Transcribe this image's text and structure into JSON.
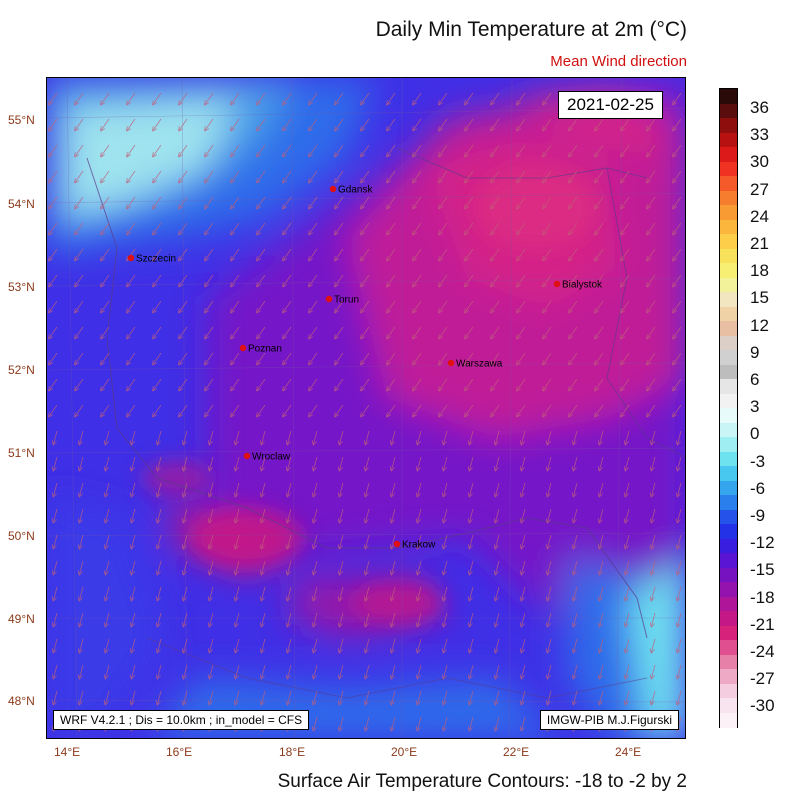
{
  "title": "Daily Min Temperature at 2m (°C)",
  "subtitle": "Mean Wind direction",
  "footer": "Surface Air Temperature Contours: -18 to -2 by 2",
  "date": "2021-02-25",
  "model_info": "WRF V4.2.1 ; Dis = 10.0km ; in_model = CFS",
  "credit": "IMGW-PIB M.J.Figurski",
  "lat_labels": [
    "55°N",
    "54°N",
    "53°N",
    "52°N",
    "51°N",
    "50°N",
    "49°N",
    "48°N"
  ],
  "lon_labels": [
    "14°E",
    "16°E",
    "18°E",
    "20°E",
    "22°E",
    "24°E"
  ],
  "colorbar_labels": [
    "36",
    "33",
    "30",
    "27",
    "24",
    "21",
    "18",
    "15",
    "12",
    "9",
    "6",
    "3",
    "0",
    "-3",
    "-6",
    "-9",
    "-12",
    "-15",
    "-18",
    "-21",
    "-24",
    "-27",
    "-30"
  ],
  "colorbar_colors": [
    "#2a0a08",
    "#5a0d0d",
    "#8e0e0e",
    "#b81111",
    "#dc1a1a",
    "#f03222",
    "#f55a2a",
    "#f77d2e",
    "#f99b33",
    "#fbb63d",
    "#fcce4a",
    "#f9e25b",
    "#f6ef73",
    "#f2f29a",
    "#f1e6c0",
    "#efd3a6",
    "#e9bfa3",
    "#dbcfc8",
    "#d0d0d0",
    "#bdbdbd",
    "#e6e6e6",
    "#f2f2f2",
    "#e8fbfb",
    "#c9f5f7",
    "#9eeef2",
    "#6fe2ef",
    "#49c8ef",
    "#35a6ee",
    "#2b7fec",
    "#2553ea",
    "#2332e6",
    "#3a1ee0",
    "#5a14d4",
    "#7712c0",
    "#9412ad",
    "#ae1598",
    "#c41887",
    "#d6227a",
    "#e04f8f",
    "#e680a8",
    "#eeaac4",
    "#f4cde0",
    "#f8e4ef",
    "#fbf1f7"
  ],
  "cities": [
    {
      "name": "Gdansk"
    },
    {
      "name": "Szczecin"
    },
    {
      "name": "Torun"
    },
    {
      "name": "Bialystok"
    },
    {
      "name": "Poznan"
    },
    {
      "name": "Warszawa"
    },
    {
      "name": "Wroclaw"
    },
    {
      "name": "Krakow"
    }
  ],
  "colors": {
    "city_marker": "#e01010",
    "wind_arrow": "#c0607a"
  }
}
